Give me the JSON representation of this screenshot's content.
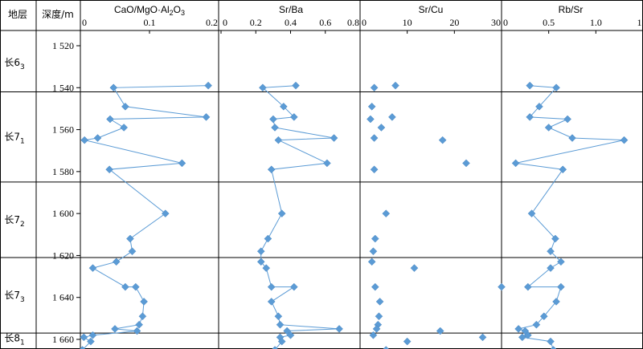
{
  "headers": {
    "strata": "地层",
    "depth": "深度/m",
    "panel1": "CaO/MgO·Al2O3",
    "panel2": "Sr/Ba",
    "panel3": "Sr/Cu",
    "panel4": "Rb/Sr"
  },
  "strata": [
    {
      "label": "长6",
      "sub": "3",
      "top": 1514,
      "bottom": 1542
    },
    {
      "label": "长7",
      "sub": "1",
      "top": 1542,
      "bottom": 1585
    },
    {
      "label": "长7",
      "sub": "2",
      "top": 1585,
      "bottom": 1621
    },
    {
      "label": "长7",
      "sub": "3",
      "top": 1621,
      "bottom": 1657
    },
    {
      "label": "长8",
      "sub": "1",
      "top": 1657,
      "bottom": 1662
    }
  ],
  "depth_axis": {
    "min": 1512,
    "max": 1662,
    "ticks": [
      1520,
      1540,
      1560,
      1580,
      1600,
      1620,
      1640,
      1660
    ],
    "tick_labels": [
      "1 520",
      "1 540",
      "1 560",
      "1 580",
      "1 600",
      "1 620",
      "1 640",
      "1 660"
    ]
  },
  "colors": {
    "marker": "#5b9bd5",
    "line": "#5b9bd5",
    "grid": "#000000"
  },
  "chart_data": [
    {
      "type": "line",
      "name": "CaO/MgO·Al2O3",
      "xlim": [
        0,
        0.2
      ],
      "xticks": [
        0,
        0.1,
        0.2
      ],
      "xtick_labels": [
        "0",
        "0.1",
        "0.2"
      ],
      "points": [
        {
          "depth": 1539,
          "value": 0.185
        },
        {
          "depth": 1540,
          "value": 0.048
        },
        {
          "depth": 1549,
          "value": 0.065
        },
        {
          "depth": 1554,
          "value": 0.182
        },
        {
          "depth": 1555,
          "value": 0.043
        },
        {
          "depth": 1559,
          "value": 0.063
        },
        {
          "depth": 1564,
          "value": 0.025
        },
        {
          "depth": 1565,
          "value": 0.006
        },
        {
          "depth": 1576,
          "value": 0.147
        },
        {
          "depth": 1579,
          "value": 0.042
        },
        {
          "depth": 1600,
          "value": 0.123
        },
        {
          "depth": 1612,
          "value": 0.072
        },
        {
          "depth": 1618,
          "value": 0.075
        },
        {
          "depth": 1623,
          "value": 0.052
        },
        {
          "depth": 1626,
          "value": 0.018
        },
        {
          "depth": 1635,
          "value": 0.065
        },
        {
          "depth": 1635,
          "value": 0.08
        },
        {
          "depth": 1642,
          "value": 0.092
        },
        {
          "depth": 1649,
          "value": 0.09
        },
        {
          "depth": 1653,
          "value": 0.085
        },
        {
          "depth": 1655,
          "value": 0.05
        },
        {
          "depth": 1656,
          "value": 0.082
        },
        {
          "depth": 1658,
          "value": 0.018
        },
        {
          "depth": 1659,
          "value": 0.005
        },
        {
          "depth": 1661,
          "value": 0.015
        },
        {
          "depth": 1665,
          "value": 0.003
        }
      ]
    },
    {
      "type": "line",
      "name": "Sr/Ba",
      "xlim": [
        0,
        0.8
      ],
      "xticks": [
        0,
        0.2,
        0.4,
        0.6,
        0.8
      ],
      "xtick_labels": [
        "0",
        "0.2",
        "0.4",
        "0.6",
        "0.8"
      ],
      "points": [
        {
          "depth": 1539,
          "value": 0.43
        },
        {
          "depth": 1540,
          "value": 0.24
        },
        {
          "depth": 1549,
          "value": 0.36
        },
        {
          "depth": 1554,
          "value": 0.42
        },
        {
          "depth": 1555,
          "value": 0.3
        },
        {
          "depth": 1559,
          "value": 0.31
        },
        {
          "depth": 1564,
          "value": 0.65
        },
        {
          "depth": 1565,
          "value": 0.33
        },
        {
          "depth": 1576,
          "value": 0.61
        },
        {
          "depth": 1579,
          "value": 0.29
        },
        {
          "depth": 1600,
          "value": 0.35
        },
        {
          "depth": 1612,
          "value": 0.27
        },
        {
          "depth": 1618,
          "value": 0.23
        },
        {
          "depth": 1623,
          "value": 0.23
        },
        {
          "depth": 1626,
          "value": 0.26
        },
        {
          "depth": 1635,
          "value": 0.29
        },
        {
          "depth": 1635,
          "value": 0.42
        },
        {
          "depth": 1642,
          "value": 0.29
        },
        {
          "depth": 1649,
          "value": 0.33
        },
        {
          "depth": 1653,
          "value": 0.34
        },
        {
          "depth": 1655,
          "value": 0.68
        },
        {
          "depth": 1656,
          "value": 0.38
        },
        {
          "depth": 1658,
          "value": 0.4
        },
        {
          "depth": 1659,
          "value": 0.34
        },
        {
          "depth": 1661,
          "value": 0.35
        },
        {
          "depth": 1665,
          "value": 0.31
        }
      ]
    },
    {
      "type": "scatter",
      "name": "Sr/Cu",
      "xlim": [
        0,
        30
      ],
      "xticks": [
        0,
        10,
        20,
        30
      ],
      "xtick_labels": [
        "0",
        "10",
        "20",
        "30"
      ],
      "points": [
        {
          "depth": 1539,
          "value": 7.5
        },
        {
          "depth": 1540,
          "value": 3.0
        },
        {
          "depth": 1549,
          "value": 2.5
        },
        {
          "depth": 1554,
          "value": 6.8
        },
        {
          "depth": 1555,
          "value": 2.2
        },
        {
          "depth": 1559,
          "value": 4.5
        },
        {
          "depth": 1564,
          "value": 3.0
        },
        {
          "depth": 1565,
          "value": 17.5
        },
        {
          "depth": 1576,
          "value": 22.5
        },
        {
          "depth": 1579,
          "value": 3.0
        },
        {
          "depth": 1600,
          "value": 5.5
        },
        {
          "depth": 1612,
          "value": 3.2
        },
        {
          "depth": 1618,
          "value": 2.8
        },
        {
          "depth": 1623,
          "value": 2.5
        },
        {
          "depth": 1626,
          "value": 11.5
        },
        {
          "depth": 1635,
          "value": 30.0
        },
        {
          "depth": 1635,
          "value": 3.2
        },
        {
          "depth": 1642,
          "value": 4.2
        },
        {
          "depth": 1649,
          "value": 4.0
        },
        {
          "depth": 1653,
          "value": 3.8
        },
        {
          "depth": 1655,
          "value": 3.5
        },
        {
          "depth": 1656,
          "value": 17.0
        },
        {
          "depth": 1658,
          "value": 2.8
        },
        {
          "depth": 1659,
          "value": 26.0
        },
        {
          "depth": 1661,
          "value": 10.0
        },
        {
          "depth": 1665,
          "value": 5.5
        }
      ]
    },
    {
      "type": "line",
      "name": "Rb/Sr",
      "xlim": [
        0,
        1.5
      ],
      "xticks": [
        0,
        0.5,
        1.0,
        1.5
      ],
      "xtick_labels": [
        "0",
        "0.5",
        "1.0",
        "1.5"
      ],
      "points": [
        {
          "depth": 1539,
          "value": 0.3
        },
        {
          "depth": 1540,
          "value": 0.58
        },
        {
          "depth": 1549,
          "value": 0.4
        },
        {
          "depth": 1554,
          "value": 0.3
        },
        {
          "depth": 1555,
          "value": 0.7
        },
        {
          "depth": 1559,
          "value": 0.5
        },
        {
          "depth": 1564,
          "value": 0.75
        },
        {
          "depth": 1565,
          "value": 1.3
        },
        {
          "depth": 1576,
          "value": 0.15
        },
        {
          "depth": 1579,
          "value": 0.65
        },
        {
          "depth": 1600,
          "value": 0.32
        },
        {
          "depth": 1612,
          "value": 0.57
        },
        {
          "depth": 1618,
          "value": 0.52
        },
        {
          "depth": 1623,
          "value": 0.63
        },
        {
          "depth": 1626,
          "value": 0.52
        },
        {
          "depth": 1635,
          "value": 0.28
        },
        {
          "depth": 1635,
          "value": 0.63
        },
        {
          "depth": 1642,
          "value": 0.58
        },
        {
          "depth": 1649,
          "value": 0.45
        },
        {
          "depth": 1653,
          "value": 0.37
        },
        {
          "depth": 1655,
          "value": 0.18
        },
        {
          "depth": 1656,
          "value": 0.25
        },
        {
          "depth": 1658,
          "value": 0.28
        },
        {
          "depth": 1659,
          "value": 0.22
        },
        {
          "depth": 1661,
          "value": 0.52
        },
        {
          "depth": 1665,
          "value": 0.55
        }
      ]
    }
  ]
}
